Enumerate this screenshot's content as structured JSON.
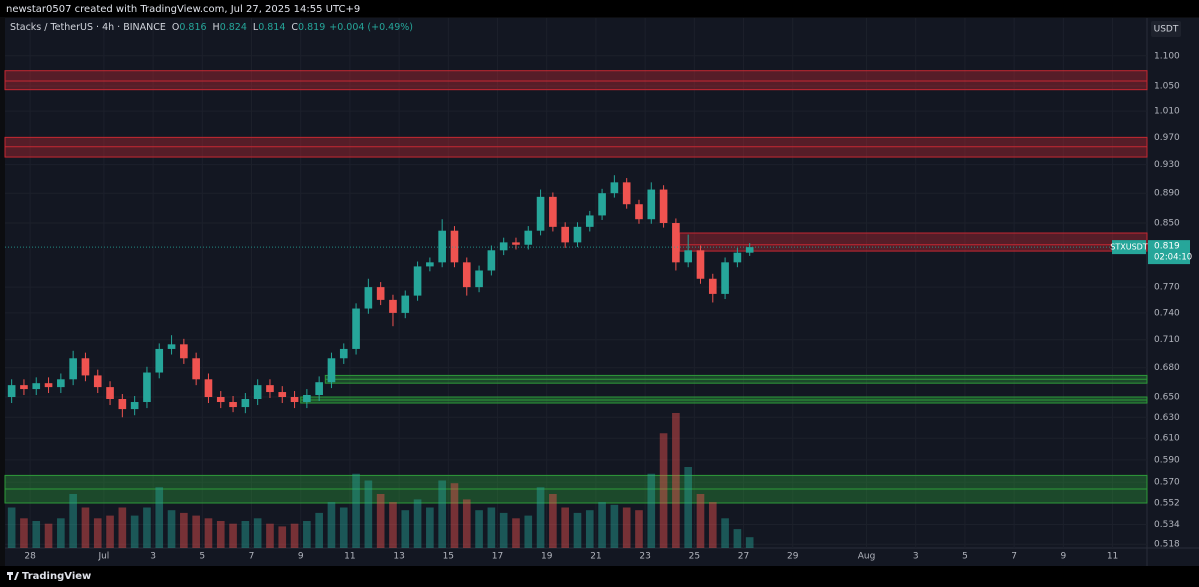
{
  "header": {
    "author": "newstar0507 created with TradingView.com, Jul 27, 2025 14:55 UTC+9"
  },
  "footer": {
    "brand": "TradingView"
  },
  "chart_data": {
    "type": "candlestick",
    "symbol": "Stacks / TetherUS · 4h · BINANCE",
    "ohlc_labels": [
      "O",
      "H",
      "L",
      "C"
    ],
    "ohlc": [
      0.816,
      0.824,
      0.814,
      0.819
    ],
    "change": "+0.004 (+0.49%)",
    "currency": "USDT",
    "ticker": "STXUSDT",
    "last_price": {
      "value": 0.819,
      "label": "0.819"
    },
    "countdown": "02:04:10",
    "up_color": "#26a69a",
    "down_color": "#ef5350",
    "log_scale": true,
    "grid": true,
    "xlim": [
      -1.02,
      45.4
    ],
    "ylim": [
      0.515,
      1.166
    ],
    "xticks": [
      {
        "value": 0,
        "label": "28"
      },
      {
        "value": 3,
        "label": "Jul"
      },
      {
        "value": 5,
        "label": "3"
      },
      {
        "value": 7,
        "label": "5"
      },
      {
        "value": 9,
        "label": "7"
      },
      {
        "value": 11,
        "label": "9"
      },
      {
        "value": 13,
        "label": "11"
      },
      {
        "value": 15,
        "label": "13"
      },
      {
        "value": 17,
        "label": "15"
      },
      {
        "value": 19,
        "label": "17"
      },
      {
        "value": 21,
        "label": "19"
      },
      {
        "value": 23,
        "label": "21"
      },
      {
        "value": 25,
        "label": "23"
      },
      {
        "value": 27,
        "label": "25"
      },
      {
        "value": 29,
        "label": "27"
      },
      {
        "value": 31,
        "label": "29"
      },
      {
        "value": 34,
        "label": "Aug"
      },
      {
        "value": 36,
        "label": "3"
      },
      {
        "value": 38,
        "label": "5"
      },
      {
        "value": 40,
        "label": "7"
      },
      {
        "value": 42,
        "label": "9"
      },
      {
        "value": 44,
        "label": "11"
      }
    ],
    "yticks": [
      {
        "value": 1.1,
        "label": "1.100"
      },
      {
        "value": 1.05,
        "label": "1.050"
      },
      {
        "value": 1.01,
        "label": "1.010"
      },
      {
        "value": 0.97,
        "label": "0.970"
      },
      {
        "value": 0.93,
        "label": "0.930"
      },
      {
        "value": 0.89,
        "label": "0.890"
      },
      {
        "value": 0.85,
        "label": "0.850"
      },
      {
        "value": 0.77,
        "label": "0.770"
      },
      {
        "value": 0.74,
        "label": "0.740"
      },
      {
        "value": 0.71,
        "label": "0.710"
      },
      {
        "value": 0.68,
        "label": "0.680"
      },
      {
        "value": 0.65,
        "label": "0.650"
      },
      {
        "value": 0.63,
        "label": "0.630"
      },
      {
        "value": 0.61,
        "label": "0.610"
      },
      {
        "value": 0.59,
        "label": "0.590"
      },
      {
        "value": 0.57,
        "label": "0.570"
      },
      0.552,
      0.534,
      0.518
    ],
    "zones": [
      {
        "low": 1.044,
        "mid": 1.058,
        "high": 1.075,
        "color": "#c62832"
      },
      {
        "low": 0.941,
        "mid": 0.956,
        "high": 0.97,
        "color": "#c62832"
      },
      {
        "low": 0.814,
        "mid": 0.822,
        "high": 0.837,
        "color": "#c62832",
        "from": 26.4
      },
      {
        "low": 0.664,
        "mid": 0.668,
        "high": 0.672,
        "color": "#2e9a3a",
        "from": 12.0
      },
      {
        "low": 0.644,
        "mid": 0.647,
        "high": 0.65,
        "color": "#2e9a3a",
        "from": 11.0
      },
      {
        "low": 0.552,
        "mid": 0.564,
        "high": 0.576,
        "color": "#2e9a3a"
      }
    ],
    "x": [
      -0.75,
      -0.25,
      0.25,
      0.75,
      1.25,
      1.75,
      2.25,
      2.75,
      3.25,
      3.75,
      4.25,
      4.75,
      5.25,
      5.75,
      6.25,
      6.75,
      7.25,
      7.75,
      8.25,
      8.75,
      9.25,
      9.75,
      10.25,
      10.75,
      11.25,
      11.75,
      12.25,
      12.75,
      13.25,
      13.75,
      14.25,
      14.75,
      15.25,
      15.75,
      16.25,
      16.75,
      17.25,
      17.75,
      18.25,
      18.75,
      19.25,
      19.75,
      20.25,
      20.75,
      21.25,
      21.75,
      22.25,
      22.75,
      23.25,
      23.75,
      24.25,
      24.75,
      25.25,
      25.75,
      26.25,
      26.75,
      27.25,
      27.75,
      28.25,
      28.75,
      29.25
    ],
    "open": [
      0.65,
      0.662,
      0.658,
      0.664,
      0.66,
      0.668,
      0.69,
      0.672,
      0.66,
      0.648,
      0.638,
      0.645,
      0.675,
      0.7,
      0.705,
      0.69,
      0.668,
      0.65,
      0.645,
      0.64,
      0.648,
      0.662,
      0.655,
      0.65,
      0.645,
      0.652,
      0.665,
      0.69,
      0.7,
      0.745,
      0.77,
      0.755,
      0.74,
      0.76,
      0.795,
      0.8,
      0.84,
      0.8,
      0.77,
      0.79,
      0.815,
      0.825,
      0.822,
      0.84,
      0.885,
      0.845,
      0.825,
      0.845,
      0.86,
      0.89,
      0.905,
      0.875,
      0.855,
      0.895,
      0.85,
      0.8,
      0.815,
      0.78,
      0.762,
      0.8,
      0.812
    ],
    "high": [
      0.668,
      0.668,
      0.67,
      0.67,
      0.674,
      0.698,
      0.696,
      0.678,
      0.666,
      0.653,
      0.651,
      0.681,
      0.706,
      0.715,
      0.711,
      0.696,
      0.674,
      0.656,
      0.651,
      0.654,
      0.668,
      0.668,
      0.661,
      0.656,
      0.658,
      0.671,
      0.696,
      0.706,
      0.751,
      0.78,
      0.776,
      0.761,
      0.766,
      0.801,
      0.806,
      0.855,
      0.846,
      0.806,
      0.796,
      0.821,
      0.831,
      0.831,
      0.846,
      0.895,
      0.891,
      0.851,
      0.851,
      0.866,
      0.896,
      0.915,
      0.911,
      0.881,
      0.905,
      0.901,
      0.856,
      0.835,
      0.821,
      0.786,
      0.806,
      0.818,
      0.824
    ],
    "low": [
      0.644,
      0.652,
      0.652,
      0.654,
      0.654,
      0.662,
      0.666,
      0.654,
      0.642,
      0.63,
      0.632,
      0.639,
      0.669,
      0.694,
      0.684,
      0.662,
      0.644,
      0.639,
      0.635,
      0.634,
      0.642,
      0.649,
      0.644,
      0.639,
      0.639,
      0.646,
      0.659,
      0.684,
      0.694,
      0.739,
      0.749,
      0.725,
      0.734,
      0.754,
      0.789,
      0.794,
      0.794,
      0.76,
      0.764,
      0.784,
      0.809,
      0.816,
      0.816,
      0.834,
      0.839,
      0.818,
      0.819,
      0.839,
      0.854,
      0.884,
      0.869,
      0.849,
      0.849,
      0.844,
      0.79,
      0.794,
      0.774,
      0.752,
      0.756,
      0.794,
      0.808
    ],
    "close": [
      0.662,
      0.658,
      0.664,
      0.66,
      0.668,
      0.69,
      0.672,
      0.66,
      0.648,
      0.638,
      0.645,
      0.675,
      0.7,
      0.705,
      0.69,
      0.668,
      0.65,
      0.645,
      0.64,
      0.648,
      0.662,
      0.655,
      0.65,
      0.645,
      0.652,
      0.665,
      0.69,
      0.7,
      0.745,
      0.77,
      0.755,
      0.74,
      0.76,
      0.795,
      0.8,
      0.84,
      0.8,
      0.77,
      0.79,
      0.815,
      0.825,
      0.822,
      0.84,
      0.885,
      0.845,
      0.825,
      0.845,
      0.86,
      0.89,
      0.905,
      0.875,
      0.855,
      0.895,
      0.85,
      0.8,
      0.815,
      0.78,
      0.762,
      0.8,
      0.812,
      0.819
    ],
    "volume": [
      30,
      22,
      20,
      18,
      22,
      40,
      30,
      22,
      24,
      30,
      24,
      30,
      45,
      28,
      26,
      24,
      22,
      20,
      18,
      20,
      22,
      18,
      16,
      18,
      20,
      26,
      34,
      30,
      55,
      50,
      40,
      34,
      28,
      36,
      30,
      50,
      48,
      36,
      28,
      30,
      26,
      22,
      24,
      45,
      40,
      30,
      26,
      28,
      34,
      32,
      30,
      28,
      55,
      85,
      100,
      60,
      40,
      34,
      22,
      14,
      8
    ]
  }
}
